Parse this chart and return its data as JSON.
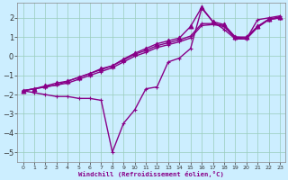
{
  "xlabel": "Windchill (Refroidissement éolien,°C)",
  "bg_color": "#cceeff",
  "line_color": "#880088",
  "grid_color": "#99ccbb",
  "xlim": [
    -0.5,
    23.5
  ],
  "ylim": [
    -5.5,
    2.8
  ],
  "xticks": [
    0,
    1,
    2,
    3,
    4,
    5,
    6,
    7,
    8,
    9,
    10,
    11,
    12,
    13,
    14,
    15,
    16,
    17,
    18,
    19,
    20,
    21,
    22,
    23
  ],
  "yticks": [
    -5,
    -4,
    -3,
    -2,
    -1,
    0,
    1,
    2
  ],
  "lines": [
    {
      "x": [
        0,
        1,
        2,
        3,
        4,
        5,
        6,
        7,
        8,
        9,
        10,
        11,
        12,
        13,
        14,
        15,
        16,
        17,
        18,
        19,
        20,
        21,
        22,
        23
      ],
      "y": [
        -1.8,
        -1.9,
        -2.0,
        -2.1,
        -2.1,
        -2.2,
        -2.2,
        -2.3,
        -5.0,
        -3.5,
        -2.8,
        -1.7,
        -1.6,
        -0.3,
        -0.1,
        0.4,
        2.5,
        1.8,
        1.4,
        0.9,
        0.9,
        1.9,
        2.0,
        2.1
      ],
      "marker": "+",
      "ms": 3.5,
      "lw": 1.0
    },
    {
      "x": [
        0,
        1,
        2,
        3,
        4,
        5,
        6,
        7,
        8,
        9,
        10,
        11,
        12,
        13,
        14,
        15,
        16,
        17,
        18,
        19,
        20,
        21,
        22,
        23
      ],
      "y": [
        -1.8,
        -1.7,
        -1.6,
        -1.5,
        -1.4,
        -1.2,
        -1.0,
        -0.8,
        -0.6,
        -0.3,
        0.0,
        0.2,
        0.45,
        0.6,
        0.75,
        0.95,
        1.6,
        1.65,
        1.55,
        0.95,
        0.9,
        1.5,
        1.9,
        2.0
      ],
      "marker": "+",
      "ms": 3.5,
      "lw": 1.0
    },
    {
      "x": [
        0,
        1,
        2,
        3,
        4,
        5,
        6,
        7,
        8,
        9,
        10,
        11,
        12,
        13,
        14,
        15,
        16,
        17,
        18,
        19,
        20,
        21,
        22,
        23
      ],
      "y": [
        -1.8,
        -1.7,
        -1.6,
        -1.5,
        -1.3,
        -1.1,
        -0.9,
        -0.7,
        -0.5,
        -0.2,
        0.1,
        0.3,
        0.55,
        0.7,
        0.85,
        1.05,
        1.7,
        1.7,
        1.6,
        1.0,
        0.95,
        1.55,
        1.92,
        2.0
      ],
      "marker": "+",
      "ms": 3.5,
      "lw": 1.0
    },
    {
      "x": [
        0,
        1,
        2,
        3,
        4,
        5,
        6,
        7,
        8,
        9,
        10,
        11,
        12,
        13,
        14,
        15,
        16,
        17,
        18,
        19,
        20,
        21,
        22,
        23
      ],
      "y": [
        -1.8,
        -1.7,
        -1.55,
        -1.4,
        -1.3,
        -1.1,
        -0.9,
        -0.65,
        -0.5,
        -0.15,
        0.15,
        0.4,
        0.65,
        0.8,
        0.95,
        1.55,
        2.55,
        1.8,
        1.65,
        1.0,
        1.0,
        1.55,
        1.93,
        2.05
      ],
      "marker": "^",
      "ms": 3.5,
      "lw": 1.0
    }
  ]
}
